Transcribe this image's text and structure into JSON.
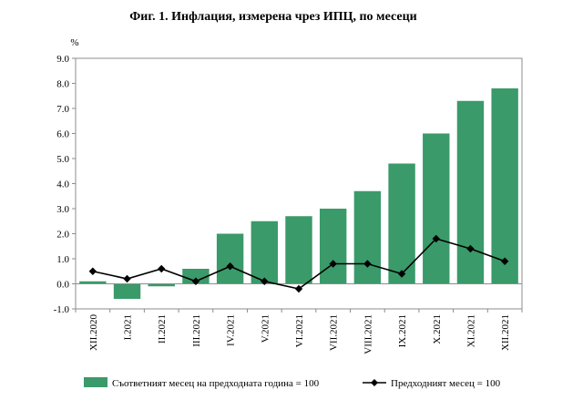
{
  "chart_data": {
    "type": "bar",
    "title": "Фиг. 1. Инфлация, измерена чрез ИПЦ, по месеци",
    "ylabel": "%",
    "xlabel": "",
    "ylim": [
      -1.0,
      9.0
    ],
    "ytick_labels": [
      "-1.0",
      "0.0",
      "1.0",
      "2.0",
      "3.0",
      "4.0",
      "5.0",
      "6.0",
      "7.0",
      "8.0",
      "9.0"
    ],
    "categories": [
      "XII.2020",
      "I.2021",
      "II.2021",
      "III.2021",
      "IV.2021",
      "V.2021",
      "VI.2021",
      "VII.2021",
      "VIII.2021",
      "IX.2021",
      "X.2021",
      "XI.2021",
      "XII.2021"
    ],
    "series": [
      {
        "name": "Съответният месец на предходната година = 100",
        "kind": "bar",
        "color": "#3a9a6a",
        "values": [
          0.1,
          -0.6,
          -0.1,
          0.6,
          2.0,
          2.5,
          2.7,
          3.0,
          3.7,
          4.8,
          6.0,
          7.3,
          7.8
        ]
      },
      {
        "name": "Предходният месец = 100",
        "kind": "line",
        "color": "#000000",
        "values": [
          0.5,
          0.2,
          0.6,
          0.1,
          0.7,
          0.1,
          -0.2,
          0.8,
          0.8,
          0.4,
          1.8,
          1.4,
          0.9
        ]
      }
    ],
    "legend_position": "bottom",
    "grid": false
  }
}
